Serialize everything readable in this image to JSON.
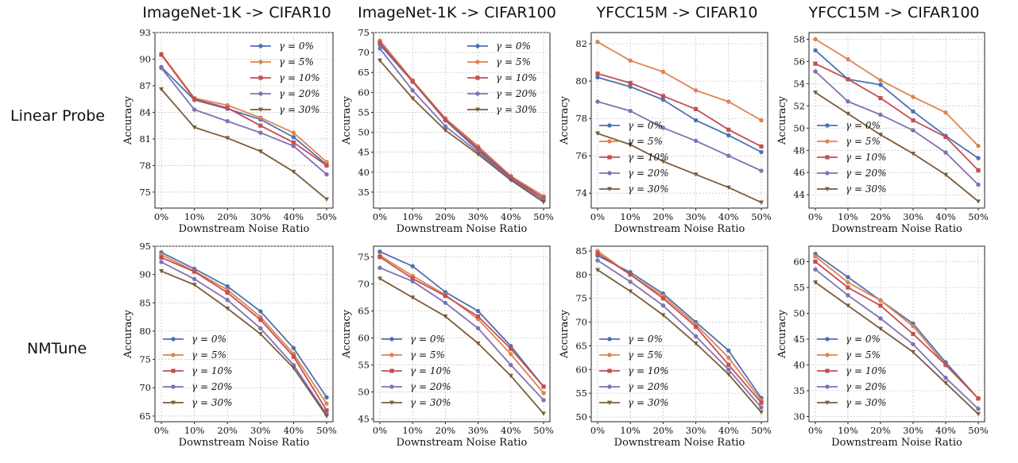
{
  "column_titles": [
    "ImageNet-1K -> CIFAR10",
    "ImageNet-1K -> CIFAR100",
    "YFCC15M -> CIFAR10",
    "YFCC15M -> CIFAR100"
  ],
  "row_labels": [
    "Linear Probe",
    "NMTune"
  ],
  "series_colors": [
    "#4c72b0",
    "#dd8452",
    "#c44e52",
    "#8172b3",
    "#7b5b3a"
  ],
  "chart_data": [
    {
      "type": "line",
      "title": "ImageNet-1K -> CIFAR10",
      "row": "Linear Probe",
      "x": [
        "0%",
        "10%",
        "20%",
        "30%",
        "40%",
        "50%"
      ],
      "xlabel": "Downstream Noise Ratio",
      "ylabel": "Accuracy",
      "ylim": [
        73.2,
        93
      ],
      "yticks": [
        "75",
        "78",
        "81",
        "84",
        "87",
        "90",
        "93"
      ],
      "grid": true,
      "legend": "top-right",
      "series": [
        {
          "name": "γ = 0%",
          "values": [
            89.1,
            85.4,
            84.4,
            83.2,
            81.2,
            78.1
          ]
        },
        {
          "name": "γ = 5%",
          "values": [
            90.6,
            85.6,
            84.8,
            83.4,
            81.7,
            78.4
          ]
        },
        {
          "name": "γ = 10%",
          "values": [
            90.5,
            85.5,
            84.5,
            82.5,
            80.6,
            78.0
          ]
        },
        {
          "name": "γ = 20%",
          "values": [
            89.0,
            84.3,
            83.0,
            81.7,
            80.2,
            77.0
          ]
        },
        {
          "name": "γ = 30%",
          "values": [
            86.6,
            82.3,
            81.1,
            79.6,
            77.3,
            74.2
          ]
        }
      ]
    },
    {
      "type": "line",
      "title": "ImageNet-1K -> CIFAR100",
      "row": "Linear Probe",
      "x": [
        "0%",
        "10%",
        "20%",
        "30%",
        "40%",
        "50%"
      ],
      "xlabel": "Downstream Noise Ratio",
      "ylabel": "Accuracy",
      "ylim": [
        31,
        75
      ],
      "yticks": [
        "35",
        "40",
        "45",
        "50",
        "55",
        "60",
        "65",
        "70",
        "75"
      ],
      "grid": true,
      "legend": "top-right",
      "series": [
        {
          "name": "γ = 0%",
          "values": [
            72.0,
            62.7,
            53.0,
            45.5,
            38.5,
            33.5
          ]
        },
        {
          "name": "γ = 5%",
          "values": [
            73.0,
            63.0,
            53.5,
            46.5,
            39.0,
            34.0
          ]
        },
        {
          "name": "γ = 10%",
          "values": [
            72.5,
            62.8,
            53.2,
            46.0,
            38.8,
            33.5
          ]
        },
        {
          "name": "γ = 20%",
          "values": [
            71.0,
            60.5,
            51.5,
            45.0,
            38.3,
            33.0
          ]
        },
        {
          "name": "γ = 30%",
          "values": [
            68.0,
            58.5,
            50.5,
            44.5,
            38.0,
            32.5
          ]
        }
      ]
    },
    {
      "type": "line",
      "title": "YFCC15M -> CIFAR10",
      "row": "Linear Probe",
      "x": [
        "0%",
        "10%",
        "20%",
        "30%",
        "40%",
        "50%"
      ],
      "xlabel": "Downstream Noise Ratio",
      "ylabel": "Accuracy",
      "ylim": [
        73.2,
        82.6
      ],
      "yticks": [
        "74",
        "76",
        "78",
        "80",
        "82"
      ],
      "grid": true,
      "legend": "bottom-left",
      "series": [
        {
          "name": "γ = 0%",
          "values": [
            80.2,
            79.7,
            79.0,
            77.9,
            77.1,
            76.2
          ]
        },
        {
          "name": "γ = 5%",
          "values": [
            82.1,
            81.1,
            80.5,
            79.5,
            78.9,
            77.9
          ]
        },
        {
          "name": "γ = 10%",
          "values": [
            80.4,
            79.9,
            79.2,
            78.5,
            77.4,
            76.5
          ]
        },
        {
          "name": "γ = 20%",
          "values": [
            78.9,
            78.4,
            77.5,
            76.8,
            76.0,
            75.2
          ]
        },
        {
          "name": "γ = 30%",
          "values": [
            77.2,
            76.6,
            75.7,
            75.0,
            74.3,
            73.5
          ]
        }
      ]
    },
    {
      "type": "line",
      "title": "YFCC15M -> CIFAR100",
      "row": "Linear Probe",
      "x": [
        "0%",
        "10%",
        "20%",
        "30%",
        "40%",
        "50%"
      ],
      "xlabel": "Downstream Noise Ratio",
      "ylabel": "Accuracy",
      "ylim": [
        42.8,
        58.6
      ],
      "yticks": [
        "44",
        "46",
        "48",
        "50",
        "52",
        "54",
        "56",
        "58"
      ],
      "grid": true,
      "legend": "bottom-left",
      "series": [
        {
          "name": "γ = 0%",
          "values": [
            57.0,
            54.4,
            53.9,
            51.5,
            49.3,
            47.3
          ]
        },
        {
          "name": "γ = 5%",
          "values": [
            58.0,
            56.2,
            54.3,
            52.8,
            51.4,
            48.4
          ]
        },
        {
          "name": "γ = 10%",
          "values": [
            55.8,
            54.4,
            52.7,
            50.7,
            49.2,
            46.2
          ]
        },
        {
          "name": "γ = 20%",
          "values": [
            55.1,
            52.4,
            51.2,
            49.8,
            47.8,
            44.9
          ]
        },
        {
          "name": "γ = 30%",
          "values": [
            53.2,
            51.3,
            49.4,
            47.7,
            45.8,
            43.4
          ]
        }
      ]
    },
    {
      "type": "line",
      "title": "ImageNet-1K -> CIFAR10",
      "row": "NMTune",
      "x": [
        "0%",
        "10%",
        "20%",
        "30%",
        "40%",
        "50%"
      ],
      "xlabel": "Downstream Noise Ratio",
      "ylabel": "Accuracy",
      "ylim": [
        64,
        95
      ],
      "yticks": [
        "65",
        "70",
        "75",
        "80",
        "85",
        "90",
        "95"
      ],
      "grid": true,
      "legend": "bottom-left",
      "series": [
        {
          "name": "γ = 0%",
          "values": [
            93.9,
            91.0,
            87.9,
            83.5,
            77.0,
            68.3
          ]
        },
        {
          "name": "γ = 5%",
          "values": [
            93.5,
            90.6,
            87.3,
            82.5,
            76.0,
            67.2
          ]
        },
        {
          "name": "γ = 10%",
          "values": [
            93.0,
            90.5,
            86.8,
            82.0,
            75.5,
            66.0
          ]
        },
        {
          "name": "γ = 20%",
          "values": [
            92.2,
            89.2,
            85.5,
            80.5,
            74.0,
            65.3
          ]
        },
        {
          "name": "γ = 30%",
          "values": [
            90.6,
            88.2,
            84.0,
            79.5,
            73.5,
            65.0
          ]
        }
      ]
    },
    {
      "type": "line",
      "title": "ImageNet-1K -> CIFAR100",
      "row": "NMTune",
      "x": [
        "0%",
        "10%",
        "20%",
        "30%",
        "40%",
        "50%"
      ],
      "xlabel": "Downstream Noise Ratio",
      "ylabel": "Accuracy",
      "ylim": [
        44.5,
        77
      ],
      "yticks": [
        "45",
        "50",
        "55",
        "60",
        "65",
        "70",
        "75"
      ],
      "grid": true,
      "legend": "bottom-left",
      "series": [
        {
          "name": "γ = 0%",
          "values": [
            76.0,
            73.3,
            68.5,
            65.0,
            58.5,
            51.0
          ]
        },
        {
          "name": "γ = 5%",
          "values": [
            75.3,
            71.5,
            68.0,
            63.5,
            57.0,
            49.8
          ]
        },
        {
          "name": "γ = 10%",
          "values": [
            75.0,
            71.0,
            67.8,
            64.0,
            58.0,
            51.0
          ]
        },
        {
          "name": "γ = 20%",
          "values": [
            73.0,
            70.5,
            66.5,
            61.8,
            55.0,
            48.5
          ]
        },
        {
          "name": "γ = 30%",
          "values": [
            71.0,
            67.5,
            64.0,
            59.0,
            53.0,
            46.0
          ]
        }
      ]
    },
    {
      "type": "line",
      "title": "YFCC15M -> CIFAR10",
      "row": "NMTune",
      "x": [
        "0%",
        "10%",
        "20%",
        "30%",
        "40%",
        "50%"
      ],
      "xlabel": "Downstream Noise Ratio",
      "ylabel": "Accuracy",
      "ylim": [
        49,
        86
      ],
      "yticks": [
        "50",
        "55",
        "60",
        "65",
        "70",
        "75",
        "80",
        "85"
      ],
      "grid": true,
      "legend": "bottom-left",
      "series": [
        {
          "name": "γ = 0%",
          "values": [
            84.0,
            80.5,
            76.0,
            70.0,
            64.0,
            54.0
          ]
        },
        {
          "name": "γ = 5%",
          "values": [
            85.0,
            80.0,
            75.5,
            69.5,
            62.5,
            53.5
          ]
        },
        {
          "name": "γ = 10%",
          "values": [
            84.5,
            80.0,
            75.0,
            69.0,
            61.0,
            53.0
          ]
        },
        {
          "name": "γ = 20%",
          "values": [
            83.0,
            78.5,
            73.5,
            67.0,
            60.0,
            52.0
          ]
        },
        {
          "name": "γ = 30%",
          "values": [
            81.0,
            76.5,
            71.5,
            65.5,
            59.0,
            51.0
          ]
        }
      ]
    },
    {
      "type": "line",
      "title": "YFCC15M -> CIFAR100",
      "row": "NMTune",
      "x": [
        "0%",
        "10%",
        "20%",
        "30%",
        "40%",
        "50%"
      ],
      "xlabel": "Downstream Noise Ratio",
      "ylabel": "Accuracy",
      "ylim": [
        29,
        63
      ],
      "yticks": [
        "30",
        "35",
        "40",
        "45",
        "50",
        "55",
        "60"
      ],
      "grid": true,
      "legend": "bottom-left",
      "series": [
        {
          "name": "γ = 0%",
          "values": [
            61.5,
            57.0,
            52.5,
            48.0,
            40.5,
            33.5
          ]
        },
        {
          "name": "γ = 5%",
          "values": [
            61.0,
            56.0,
            52.5,
            47.5,
            40.0,
            33.5
          ]
        },
        {
          "name": "γ = 10%",
          "values": [
            60.0,
            55.0,
            51.5,
            46.0,
            40.0,
            33.5
          ]
        },
        {
          "name": "γ = 20%",
          "values": [
            58.5,
            53.5,
            49.0,
            44.0,
            37.5,
            31.5
          ]
        },
        {
          "name": "γ = 30%",
          "values": [
            56.0,
            51.5,
            47.0,
            42.5,
            36.5,
            30.5
          ]
        }
      ]
    }
  ]
}
